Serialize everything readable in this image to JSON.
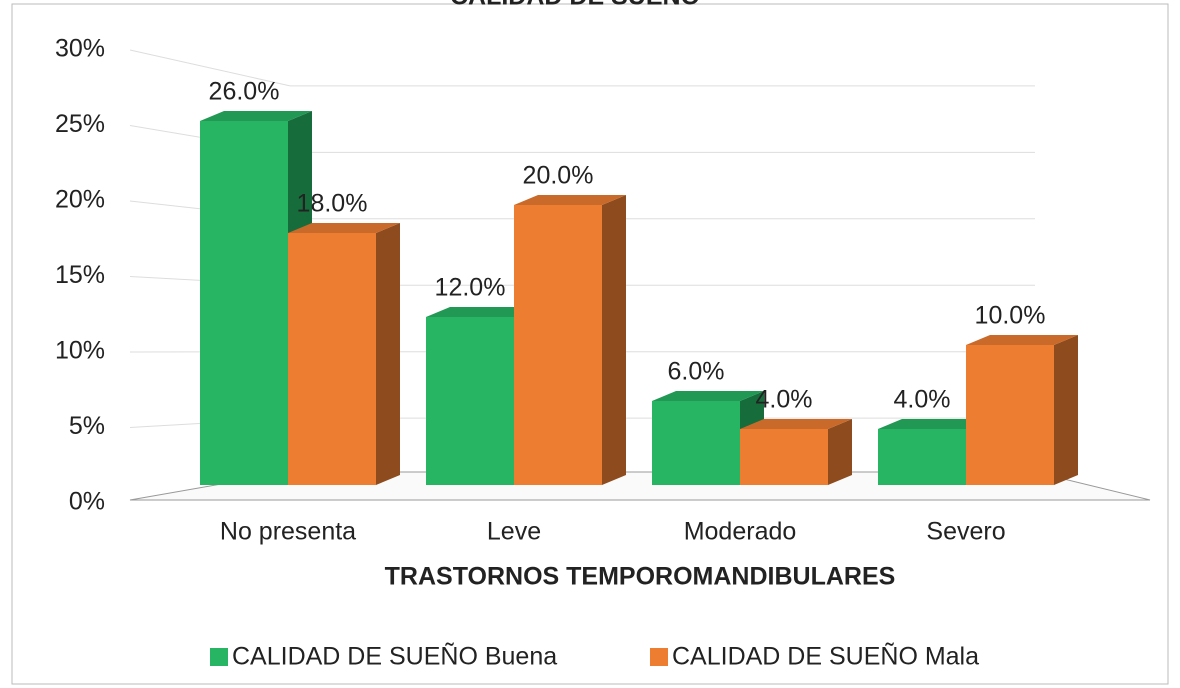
{
  "chart_data": {
    "type": "bar3d",
    "title": "CALIDAD DE SUEÑO",
    "x_label": "TRASTORNOS TEMPOROMANDIBULARES",
    "categories": [
      "No presenta",
      "Leve",
      "Moderado",
      "Severo"
    ],
    "series": [
      {
        "name": "CALIDAD DE SUEÑO Buena",
        "color": "#27b463",
        "values": [
          26,
          12,
          6,
          4
        ],
        "value_labels": [
          "26.0%",
          "12.0%",
          "6.0%",
          "4.0%"
        ]
      },
      {
        "name": "CALIDAD DE SUEÑO Mala",
        "color": "#ed7d31",
        "values": [
          18,
          20,
          4,
          10
        ],
        "value_labels": [
          "18.0%",
          "20.0%",
          "4.0%",
          "10.0%"
        ]
      }
    ],
    "ylim": [
      0,
      30
    ],
    "yticks": [
      {
        "value": 0,
        "label": "0%"
      },
      {
        "value": 5,
        "label": "5%"
      },
      {
        "value": 10,
        "label": "10%"
      },
      {
        "value": 15,
        "label": "15%"
      },
      {
        "value": 20,
        "label": "20%"
      },
      {
        "value": 25,
        "label": "25%"
      },
      {
        "value": 30,
        "label": "30%"
      }
    ],
    "grid": true,
    "legend": "bottom"
  }
}
